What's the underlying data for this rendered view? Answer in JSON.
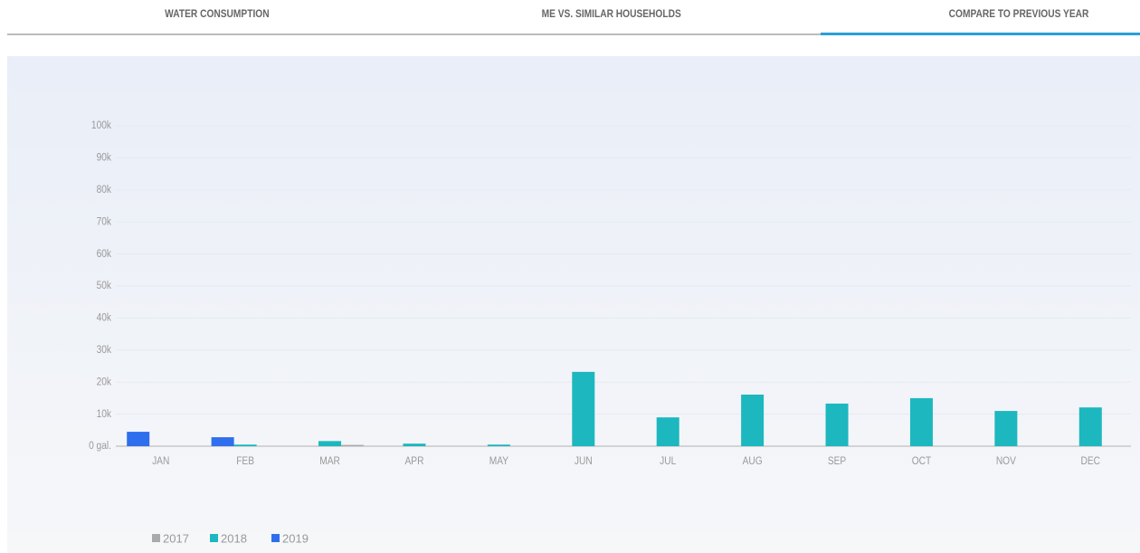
{
  "tabs": [
    {
      "label": "WATER CONSUMPTION",
      "active": false
    },
    {
      "label": "ME VS. SIMILAR HOUSEHOLDS",
      "active": false
    },
    {
      "label": "COMPARE TO PREVIOUS YEAR",
      "active": true
    }
  ],
  "chart_data": {
    "type": "bar",
    "categories": [
      "JAN",
      "FEB",
      "MAR",
      "APR",
      "MAY",
      "JUN",
      "JUL",
      "AUG",
      "SEP",
      "OCT",
      "NOV",
      "DEC"
    ],
    "series": [
      {
        "name": "2019",
        "color": "#2f6fee",
        "values": [
          4500,
          2800,
          null,
          null,
          null,
          null,
          null,
          null,
          null,
          null,
          null,
          null
        ]
      },
      {
        "name": "2018",
        "color": "#1db7bf",
        "values": [
          null,
          500,
          1600,
          800,
          500,
          23200,
          9000,
          16100,
          13300,
          15000,
          11000,
          12100
        ]
      },
      {
        "name": "2017",
        "color": "#aaaaaa",
        "values": [
          null,
          null,
          400,
          null,
          null,
          null,
          null,
          null,
          null,
          null,
          null,
          null
        ]
      }
    ],
    "legend_order": [
      "2017",
      "2018",
      "2019"
    ],
    "ylim": [
      0,
      100000
    ],
    "yticks": [
      {
        "value": 0,
        "label": "0 gal."
      },
      {
        "value": 10000,
        "label": "10k"
      },
      {
        "value": 20000,
        "label": "20k"
      },
      {
        "value": 30000,
        "label": "30k"
      },
      {
        "value": 40000,
        "label": "40k"
      },
      {
        "value": 50000,
        "label": "50k"
      },
      {
        "value": 60000,
        "label": "60k"
      },
      {
        "value": 70000,
        "label": "70k"
      },
      {
        "value": 80000,
        "label": "80k"
      },
      {
        "value": 90000,
        "label": "90k"
      },
      {
        "value": 100000,
        "label": "100k"
      }
    ],
    "grid": true
  }
}
